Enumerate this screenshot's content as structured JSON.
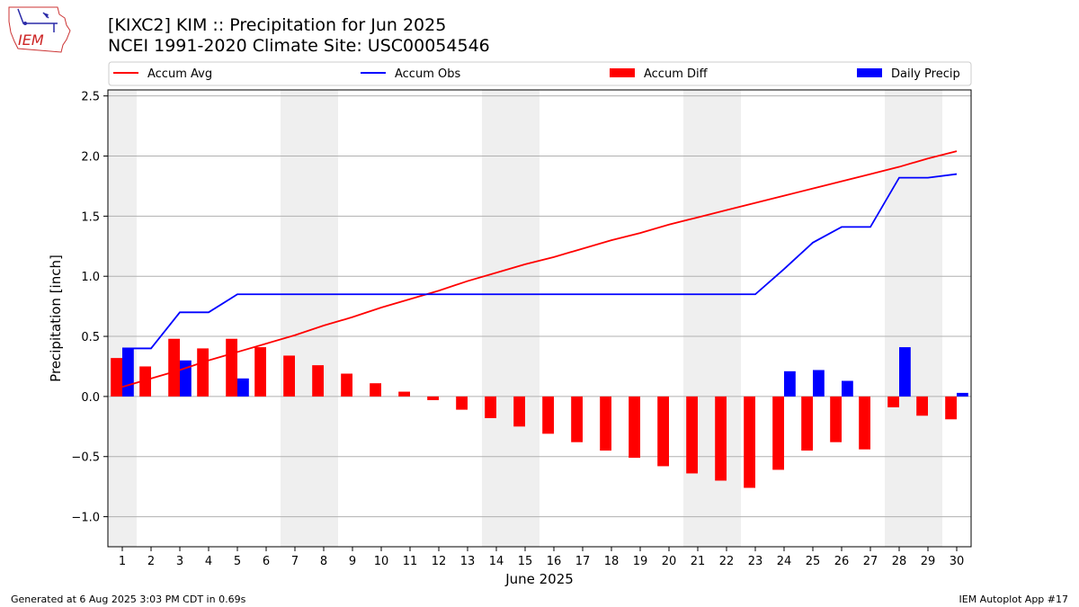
{
  "header": {
    "title_line1": "[KIXC2] KIM :: Precipitation for Jun 2025",
    "title_line2": "NCEI 1991-2020 Climate Site: USC00054546",
    "logo_text": "IEM"
  },
  "footer": {
    "left": "Generated at 6 Aug 2025 3:03 PM CDT in 0.69s",
    "right": "IEM Autoplot App #17"
  },
  "colors": {
    "avg": "#ff0000",
    "obs": "#0000ff",
    "diff": "#ff0000",
    "daily": "#0000ff",
    "weekend_shade": "#efefef",
    "grid": "#b0b0b0"
  },
  "chart_data": {
    "type": "bar",
    "xlabel": "June 2025",
    "ylabel": "Precipitation [inch]",
    "ylim": [
      -1.25,
      2.55
    ],
    "yticks": [
      -1.0,
      -0.5,
      0.0,
      0.5,
      1.0,
      1.5,
      2.0,
      2.5
    ],
    "ytick_labels": [
      "−1.0",
      "−0.5",
      "0.0",
      "0.5",
      "1.0",
      "1.5",
      "2.0",
      "2.5"
    ],
    "categories": [
      "1",
      "2",
      "3",
      "4",
      "5",
      "6",
      "7",
      "8",
      "9",
      "10",
      "11",
      "12",
      "13",
      "14",
      "15",
      "16",
      "17",
      "18",
      "19",
      "20",
      "21",
      "22",
      "23",
      "24",
      "25",
      "26",
      "27",
      "28",
      "29",
      "30"
    ],
    "grid": "horizontal",
    "legend_position": "top",
    "weekend_days": [
      1,
      7,
      8,
      14,
      15,
      21,
      22,
      28,
      29
    ],
    "series": [
      {
        "name": "Accum Avg",
        "kind": "line",
        "values": [
          0.08,
          0.15,
          0.22,
          0.3,
          0.37,
          0.44,
          0.51,
          0.59,
          0.66,
          0.74,
          0.81,
          0.88,
          0.96,
          1.03,
          1.1,
          1.16,
          1.23,
          1.3,
          1.36,
          1.43,
          1.49,
          1.55,
          1.61,
          1.67,
          1.73,
          1.79,
          1.85,
          1.91,
          1.98,
          2.04
        ]
      },
      {
        "name": "Accum Obs",
        "kind": "line",
        "values": [
          0.4,
          0.4,
          0.7,
          0.7,
          0.85,
          0.85,
          0.85,
          0.85,
          0.85,
          0.85,
          0.85,
          0.85,
          0.85,
          0.85,
          0.85,
          0.85,
          0.85,
          0.85,
          0.85,
          0.85,
          0.85,
          0.85,
          0.85,
          1.06,
          1.28,
          1.41,
          1.41,
          1.82,
          1.82,
          1.85
        ]
      },
      {
        "name": "Accum Diff",
        "kind": "bar",
        "values": [
          0.32,
          0.25,
          0.48,
          0.4,
          0.48,
          0.41,
          0.34,
          0.26,
          0.19,
          0.11,
          0.04,
          -0.03,
          -0.11,
          -0.18,
          -0.25,
          -0.31,
          -0.38,
          -0.45,
          -0.51,
          -0.58,
          -0.64,
          -0.7,
          -0.76,
          -0.61,
          -0.45,
          -0.38,
          -0.44,
          -0.09,
          -0.16,
          -0.19
        ]
      },
      {
        "name": "Daily Precip",
        "kind": "bar",
        "values": [
          0.4,
          0,
          0.3,
          0,
          0.15,
          0,
          0,
          0,
          0,
          0,
          0,
          0,
          0,
          0,
          0,
          0,
          0,
          0,
          0,
          0,
          0,
          0,
          0,
          0.21,
          0.22,
          0.13,
          0,
          0.41,
          0,
          0.03
        ]
      }
    ]
  }
}
